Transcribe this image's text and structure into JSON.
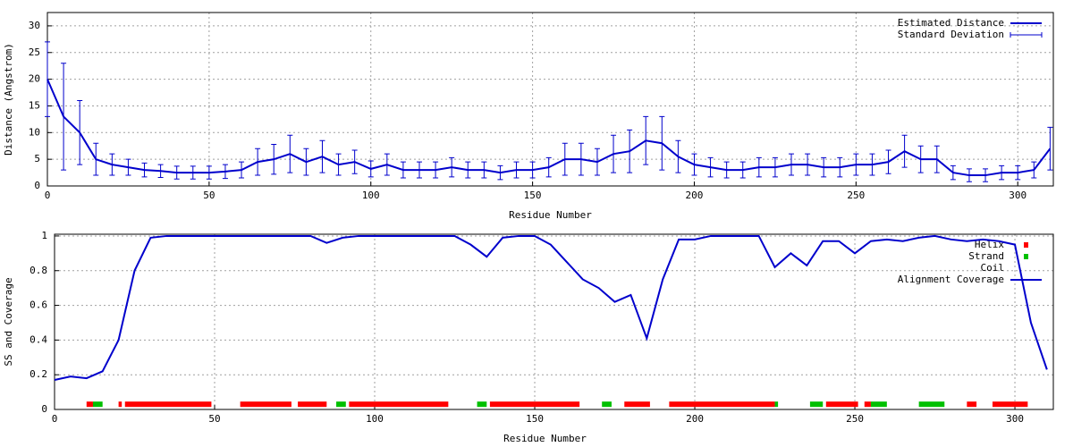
{
  "chart_data": [
    {
      "type": "errorline",
      "xlabel": "Residue Number",
      "ylabel": "Distance (Angstrom)",
      "xlim": [
        0,
        311
      ],
      "ylim": [
        0,
        32.5
      ],
      "xticks": [
        0,
        50,
        100,
        150,
        200,
        250,
        300
      ],
      "yticks": [
        0,
        5,
        10,
        15,
        20,
        25,
        30
      ],
      "grid": true,
      "legend": "upper right",
      "x": [
        0,
        5,
        10,
        15,
        20,
        25,
        30,
        35,
        40,
        45,
        50,
        55,
        60,
        65,
        70,
        75,
        80,
        85,
        90,
        95,
        100,
        105,
        110,
        115,
        120,
        125,
        130,
        135,
        140,
        145,
        150,
        155,
        160,
        165,
        170,
        175,
        180,
        185,
        190,
        195,
        200,
        205,
        210,
        215,
        220,
        225,
        230,
        235,
        240,
        245,
        250,
        255,
        260,
        265,
        270,
        275,
        280,
        285,
        290,
        295,
        300,
        305,
        310
      ],
      "series": [
        {
          "name": "Estimated Distance",
          "color": "#0000cc",
          "values": [
            20,
            13,
            10,
            5,
            4,
            3.5,
            3,
            2.8,
            2.5,
            2.5,
            2.5,
            2.7,
            3,
            4.5,
            5,
            6,
            4.5,
            5.5,
            4,
            4.5,
            3.2,
            4,
            3,
            3,
            3,
            3.5,
            3,
            3,
            2.5,
            3,
            3,
            3.5,
            5,
            5,
            4.5,
            6,
            6.5,
            8.5,
            8,
            5.5,
            4,
            3.5,
            3,
            3,
            3.5,
            3.5,
            4,
            4,
            3.5,
            3.5,
            4,
            4,
            4.5,
            6.5,
            5,
            5,
            2.5,
            2,
            2,
            2.5,
            2.5,
            3,
            7
          ]
        },
        {
          "name": "Standard Deviation",
          "color": "#0000cc",
          "errors": [
            7,
            10,
            6,
            3,
            2,
            1.5,
            1.3,
            1.2,
            1.2,
            1.2,
            1.2,
            1.3,
            1.5,
            2.5,
            2.8,
            3.5,
            2.5,
            3,
            2,
            2.2,
            1.5,
            2,
            1.5,
            1.5,
            1.5,
            1.8,
            1.5,
            1.5,
            1.3,
            1.5,
            1.5,
            1.8,
            3,
            3,
            2.5,
            3.5,
            4,
            4.5,
            5,
            3,
            2,
            1.8,
            1.5,
            1.5,
            1.8,
            1.8,
            2,
            2,
            1.8,
            1.8,
            2,
            2,
            2.2,
            3,
            2.5,
            2.5,
            1.3,
            1.2,
            1.2,
            1.3,
            1.3,
            1.5,
            4
          ]
        }
      ]
    },
    {
      "type": "coverage",
      "xlabel": "Residue Number",
      "ylabel": "SS and Coverage",
      "xlim": [
        0,
        312
      ],
      "ylim": [
        0,
        1.01
      ],
      "xticks": [
        0,
        50,
        100,
        150,
        200,
        250,
        300
      ],
      "yticks": [
        0,
        0.2,
        0.4,
        0.6,
        0.8,
        1
      ],
      "grid": true,
      "legend": "upper right",
      "x": [
        0,
        5,
        10,
        15,
        20,
        25,
        30,
        35,
        40,
        45,
        50,
        55,
        60,
        65,
        70,
        75,
        80,
        85,
        90,
        95,
        100,
        105,
        110,
        115,
        120,
        125,
        130,
        135,
        140,
        145,
        150,
        155,
        160,
        165,
        170,
        175,
        180,
        185,
        190,
        195,
        200,
        205,
        210,
        215,
        220,
        225,
        230,
        235,
        240,
        245,
        250,
        255,
        260,
        265,
        270,
        275,
        280,
        285,
        290,
        295,
        300,
        305,
        310
      ],
      "ss": [
        {
          "name": "Helix",
          "color": "#ff0000",
          "level": 0.03,
          "ranges": [
            [
              10,
              12
            ],
            [
              20,
              21
            ],
            [
              22,
              49
            ],
            [
              58,
              74
            ],
            [
              76,
              85
            ],
            [
              92,
              123
            ],
            [
              136,
              164
            ],
            [
              178,
              186
            ],
            [
              192,
              225
            ],
            [
              241,
              251
            ],
            [
              253,
              255
            ],
            [
              285,
              288
            ],
            [
              293,
              304
            ]
          ]
        },
        {
          "name": "Strand",
          "color": "#00c000",
          "level": 0.03,
          "ranges": [
            [
              12,
              15
            ],
            [
              88,
              91
            ],
            [
              132,
              135
            ],
            [
              171,
              174
            ],
            [
              225,
              226
            ],
            [
              236,
              240
            ],
            [
              255,
              260
            ],
            [
              270,
              278
            ]
          ]
        },
        {
          "name": "Coil",
          "color": "#0000cc",
          "level": 0.03,
          "ranges": []
        }
      ],
      "series": [
        {
          "name": "Alignment Coverage",
          "color": "#0000cc",
          "values": [
            0.17,
            0.19,
            0.18,
            0.22,
            0.4,
            0.8,
            0.99,
            1,
            1,
            1,
            1,
            1,
            1,
            1,
            1,
            1,
            1,
            0.96,
            0.99,
            1,
            1,
            1,
            1,
            1,
            1,
            1,
            0.95,
            0.88,
            0.99,
            1,
            1,
            0.95,
            0.85,
            0.75,
            0.7,
            0.62,
            0.66,
            0.41,
            0.75,
            0.98,
            0.98,
            1,
            1,
            1,
            1,
            0.82,
            0.9,
            0.83,
            0.97,
            0.97,
            0.9,
            0.97,
            0.98,
            0.97,
            0.99,
            1,
            0.98,
            0.97,
            0.98,
            0.97,
            0.95,
            0.5,
            0.23
          ]
        }
      ]
    }
  ]
}
